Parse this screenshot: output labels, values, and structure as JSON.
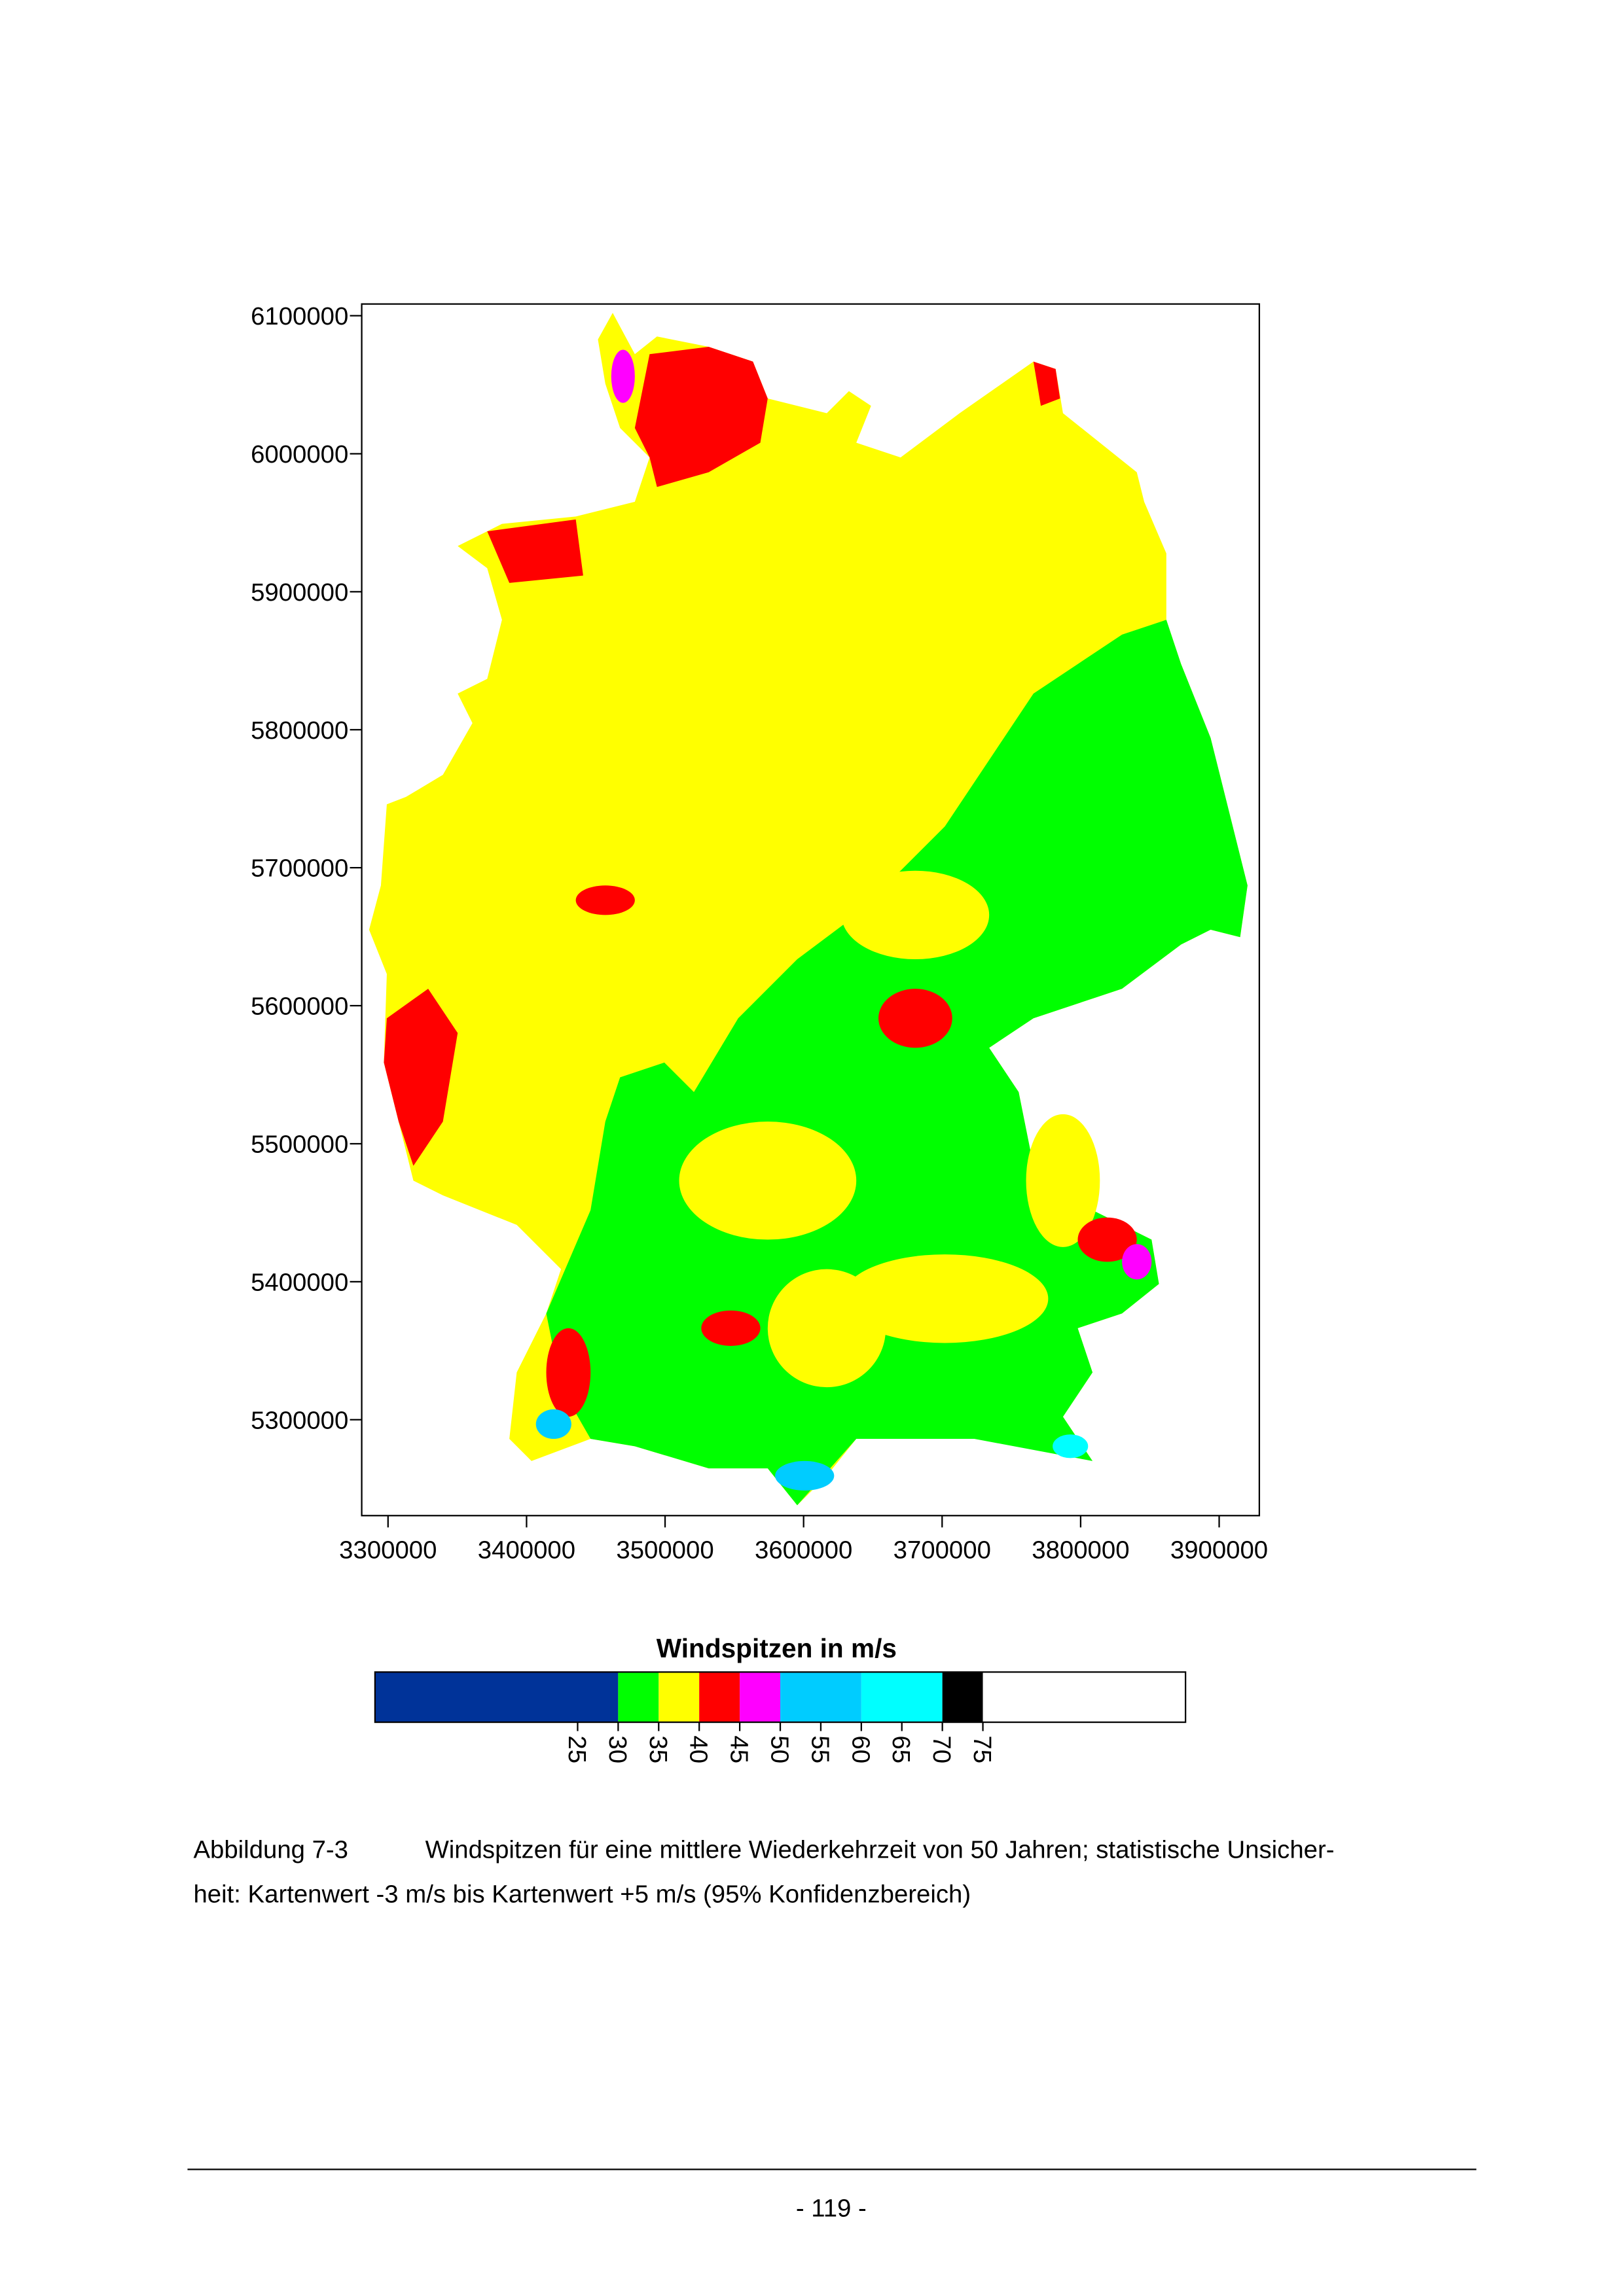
{
  "figure": {
    "type": "map",
    "xlim": [
      3281000,
      3929000
    ],
    "ylim": [
      5230500,
      6108500
    ],
    "xticks": [
      3300000,
      3400000,
      3500000,
      3600000,
      3700000,
      3800000,
      3900000
    ],
    "yticks": [
      5300000,
      5400000,
      5500000,
      5600000,
      5700000,
      5800000,
      5900000,
      6000000,
      6100000
    ]
  },
  "colorbar": {
    "title": "Windspitzen in m/s",
    "lim": [
      0,
      100
    ],
    "ticks": [
      25,
      30,
      35,
      40,
      45,
      50,
      55,
      60,
      65,
      70,
      75
    ],
    "segments": [
      {
        "from": 0,
        "to": 30,
        "color": "#003399"
      },
      {
        "from": 30,
        "to": 35,
        "color": "#00ff00"
      },
      {
        "from": 35,
        "to": 40,
        "color": "#ffff00"
      },
      {
        "from": 40,
        "to": 45,
        "color": "#ff0000"
      },
      {
        "from": 45,
        "to": 50,
        "color": "#ff00ff"
      },
      {
        "from": 50,
        "to": 60,
        "color": "#00ccff"
      },
      {
        "from": 60,
        "to": 70,
        "color": "#00ffff"
      },
      {
        "from": 70,
        "to": 75,
        "color": "#000000"
      },
      {
        "from": 75,
        "to": 100,
        "color": "#ffffff"
      }
    ]
  },
  "caption": {
    "label": "Abbildung 7-3",
    "lines": [
      "Windspitzen für eine mittlere Wiederkehrzeit von 50 Jahren; statistische Unsicher-",
      "heit: Kartenwert -3 m/s bis Kartenwert +5 m/s (95% Konfidenzbereich)"
    ]
  },
  "footer": {
    "page_number": "- 119 -"
  }
}
